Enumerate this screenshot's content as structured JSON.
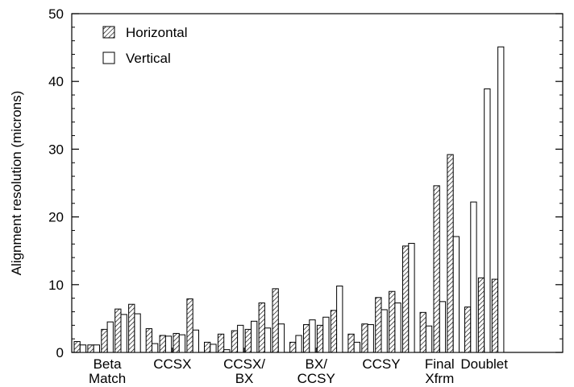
{
  "chart_data": {
    "type": "bar",
    "title": "",
    "xlabel": "",
    "ylabel": "Alignment resolution (microns)",
    "ylim": [
      0,
      50
    ],
    "yticks": [
      0,
      10,
      20,
      30,
      40,
      50
    ],
    "grid": false,
    "legend_position": "top-left",
    "categories": [
      {
        "lines": [
          "Beta",
          "Match"
        ]
      },
      {
        "lines": [
          "CCSX"
        ]
      },
      {
        "lines": [
          "CCSX/",
          "BX"
        ]
      },
      {
        "lines": [
          "BX/",
          "CCSY"
        ]
      },
      {
        "lines": [
          "CCSY"
        ]
      },
      {
        "lines": [
          "Final",
          "Xfrm"
        ]
      },
      {
        "lines": [
          "Doublet"
        ]
      }
    ],
    "series": [
      {
        "name": "Horizontal",
        "pattern": "hatched",
        "color": "#000000"
      },
      {
        "name": "Vertical",
        "pattern": "open",
        "color": "#000000"
      }
    ],
    "groups": [
      [
        [
          1.6,
          1.1
        ],
        [
          1.1,
          1.1
        ],
        [
          3.4,
          4.5
        ],
        [
          6.4,
          5.6
        ],
        [
          7.1,
          5.7
        ]
      ],
      [
        [
          3.5,
          1.3
        ],
        [
          2.5,
          2.4
        ],
        [
          2.8,
          2.6
        ],
        [
          7.9,
          3.3
        ]
      ],
      [
        [
          1.5,
          1.2
        ],
        [
          2.7,
          0.4
        ],
        [
          3.2,
          4.0
        ],
        [
          3.4,
          4.6
        ],
        [
          7.3,
          3.6
        ],
        [
          9.4,
          4.2
        ]
      ],
      [
        [
          1.5,
          2.5
        ],
        [
          4.1,
          4.8
        ],
        [
          4.0,
          5.2
        ],
        [
          6.2,
          9.8
        ]
      ],
      [
        [
          2.7,
          1.5
        ],
        [
          4.2,
          4.1
        ],
        [
          8.1,
          6.3
        ],
        [
          9.0,
          7.3
        ],
        [
          15.7,
          16.1
        ]
      ],
      [
        [
          5.9,
          3.9
        ],
        [
          24.6,
          7.5
        ],
        [
          29.2,
          17.1
        ]
      ],
      [
        [
          6.7,
          22.2
        ],
        [
          11.0,
          38.9
        ],
        [
          10.8,
          45.1
        ]
      ]
    ]
  }
}
